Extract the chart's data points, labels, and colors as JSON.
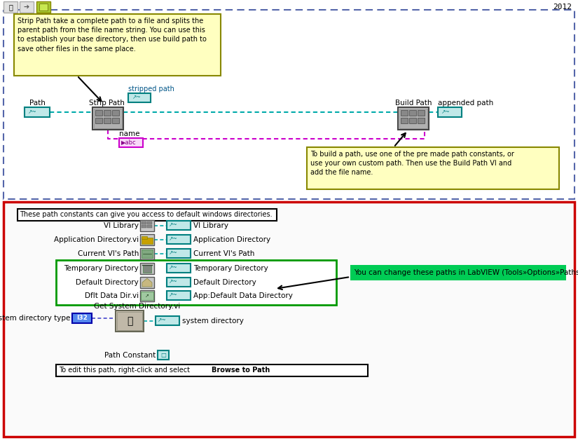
{
  "bg_color": "#f5f5f5",
  "year_text": "2012",
  "note1_text": "Strip Path take a complete path to a file and splits the\nparent path from the file name string. You can use this\nto establish your base directory, then use build path to\nsave other files in the same place.",
  "note2_text": "To build a path, use one of the pre made path constants, or\nuse your own custom path. Then use the Build Path VI and\nadd the file name.",
  "note3_text": "These path constants can give you access to default windows directories.",
  "note4_text": "You can change these paths in LabVIEW (Tools»Options»Paths)",
  "note5_plain": "To edit this path, right-click and select ",
  "note5_bold": "Browse to Path",
  "note_yellow_bg": "#ffffc0",
  "note_yellow_border": "#888800",
  "note3_bg": "#ffffff",
  "note3_border": "#000000",
  "note4_bg": "#00cc55",
  "note4_text_color": "#000000",
  "note5_bg": "#ffffff",
  "note5_border": "#000000",
  "white": "#ffffff",
  "teal": "#008080",
  "teal_light": "#c0e8e8",
  "cyan_wire": "#00aaaa",
  "magenta_wire": "#cc00cc",
  "blue_wire": "#4444cc",
  "red_border": "#cc0000",
  "green_border": "#009900",
  "blue_dashed": "#5566aa",
  "label_color": "#005588",
  "black": "#000000",
  "icon_gray": "#c8c8c8",
  "icon_border": "#555555",
  "i32_bg": "#5588ee",
  "i32_border": "#0000aa"
}
